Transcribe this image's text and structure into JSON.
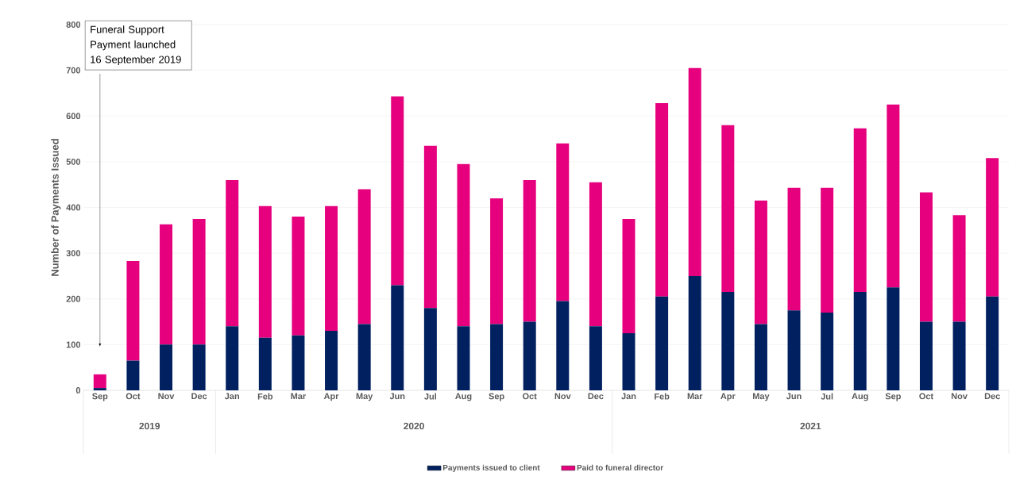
{
  "chart_data": {
    "type": "bar",
    "stacked": true,
    "ylabel": "Number of Payments Issued",
    "categories": [
      "Sep",
      "Oct",
      "Nov",
      "Dec",
      "Jan",
      "Feb",
      "Mar",
      "Apr",
      "May",
      "Jun",
      "Jul",
      "Aug",
      "Sep",
      "Oct",
      "Nov",
      "Dec",
      "Jan",
      "Feb",
      "Mar",
      "Apr",
      "May",
      "Jun",
      "Jul",
      "Aug",
      "Sep",
      "Oct",
      "Nov",
      "Dec"
    ],
    "series": [
      {
        "name": "Payments issued to client",
        "color": "#002060",
        "values": [
          5,
          65,
          100,
          100,
          140,
          115,
          120,
          130,
          145,
          230,
          180,
          140,
          145,
          150,
          195,
          140,
          125,
          205,
          250,
          215,
          145,
          175,
          170,
          215,
          225,
          150,
          150,
          205
        ]
      },
      {
        "name": "Paid to funeral director",
        "color": "#e6007e",
        "values": [
          30,
          218,
          263,
          275,
          320,
          288,
          260,
          273,
          295,
          413,
          355,
          355,
          275,
          310,
          345,
          315,
          250,
          423,
          455,
          365,
          270,
          268,
          273,
          358,
          400,
          283,
          233,
          303
        ]
      }
    ],
    "ylim": [
      0,
      800
    ],
    "yticks": [
      0,
      100,
      200,
      300,
      400,
      500,
      600,
      700,
      800
    ],
    "grid": "y",
    "legend": "bottom",
    "annotations": [
      "Funeral Support Payment launched 16 September 2019",
      "2019",
      "2020",
      "2021"
    ]
  }
}
